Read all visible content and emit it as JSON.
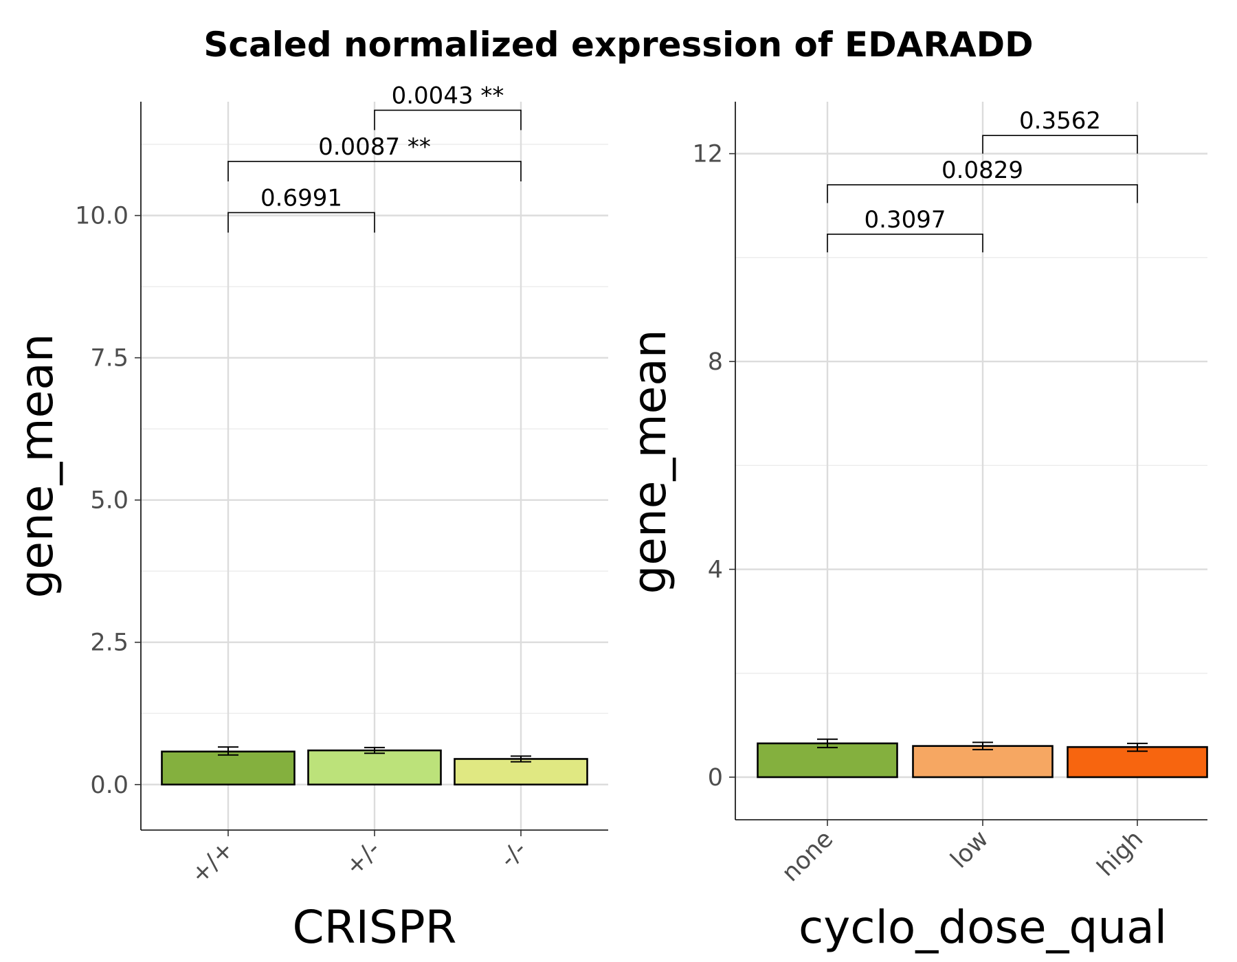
{
  "title": "Scaled normalized expression of EDARADD",
  "chart_data": [
    {
      "type": "bar",
      "xlabel": "CRISPR",
      "ylabel": "gene_mean",
      "categories": [
        "+/+",
        "+/-",
        "-/-"
      ],
      "values": [
        0.58,
        0.6,
        0.45
      ],
      "error_low": [
        0.52,
        0.55,
        0.4
      ],
      "error_high": [
        0.66,
        0.65,
        0.5
      ],
      "colors": [
        "#84b03e",
        "#bce27a",
        "#e0e882"
      ],
      "ylim": [
        -0.8,
        12.0
      ],
      "yticks": [
        0.0,
        2.5,
        5.0,
        7.5,
        10.0
      ],
      "ytick_labels": [
        "0.0",
        "2.5",
        "5.0",
        "7.5",
        "10.0"
      ],
      "yminor": [
        1.25,
        3.75,
        6.25,
        8.75,
        11.25
      ],
      "comparisons": [
        {
          "from": 0,
          "to": 1,
          "label": "0.6991",
          "y": 10.05,
          "left_end": 9.7,
          "right_end": 9.7
        },
        {
          "from": 0,
          "to": 2,
          "label": "0.0087 **",
          "y": 10.95,
          "left_end": 10.6,
          "right_end": 10.6
        },
        {
          "from": 1,
          "to": 2,
          "label": "0.0043 **",
          "y": 11.85,
          "left_end": 11.5,
          "right_end": 11.5
        }
      ]
    },
    {
      "type": "bar",
      "xlabel": "cyclo_dose_qual",
      "ylabel": "gene_mean",
      "categories": [
        "none",
        "low",
        "high"
      ],
      "values": [
        0.65,
        0.6,
        0.58
      ],
      "error_low": [
        0.57,
        0.53,
        0.5
      ],
      "error_high": [
        0.73,
        0.67,
        0.65
      ],
      "colors": [
        "#84b03e",
        "#f6a762",
        "#f7650f"
      ],
      "ylim": [
        -0.82,
        13.0
      ],
      "yticks": [
        0,
        4,
        8,
        12
      ],
      "ytick_labels": [
        "0",
        "4",
        "8",
        "12"
      ],
      "yminor": [
        2,
        6,
        10
      ],
      "comparisons": [
        {
          "from": 0,
          "to": 1,
          "label": "0.3097",
          "y": 10.45,
          "left_end": 10.1,
          "right_end": 10.1
        },
        {
          "from": 0,
          "to": 2,
          "label": "0.0829",
          "y": 11.4,
          "left_end": 11.05,
          "right_end": 11.05
        },
        {
          "from": 1,
          "to": 2,
          "label": "0.3562",
          "y": 12.35,
          "left_end": 12.0,
          "right_end": 12.0
        }
      ]
    }
  ]
}
